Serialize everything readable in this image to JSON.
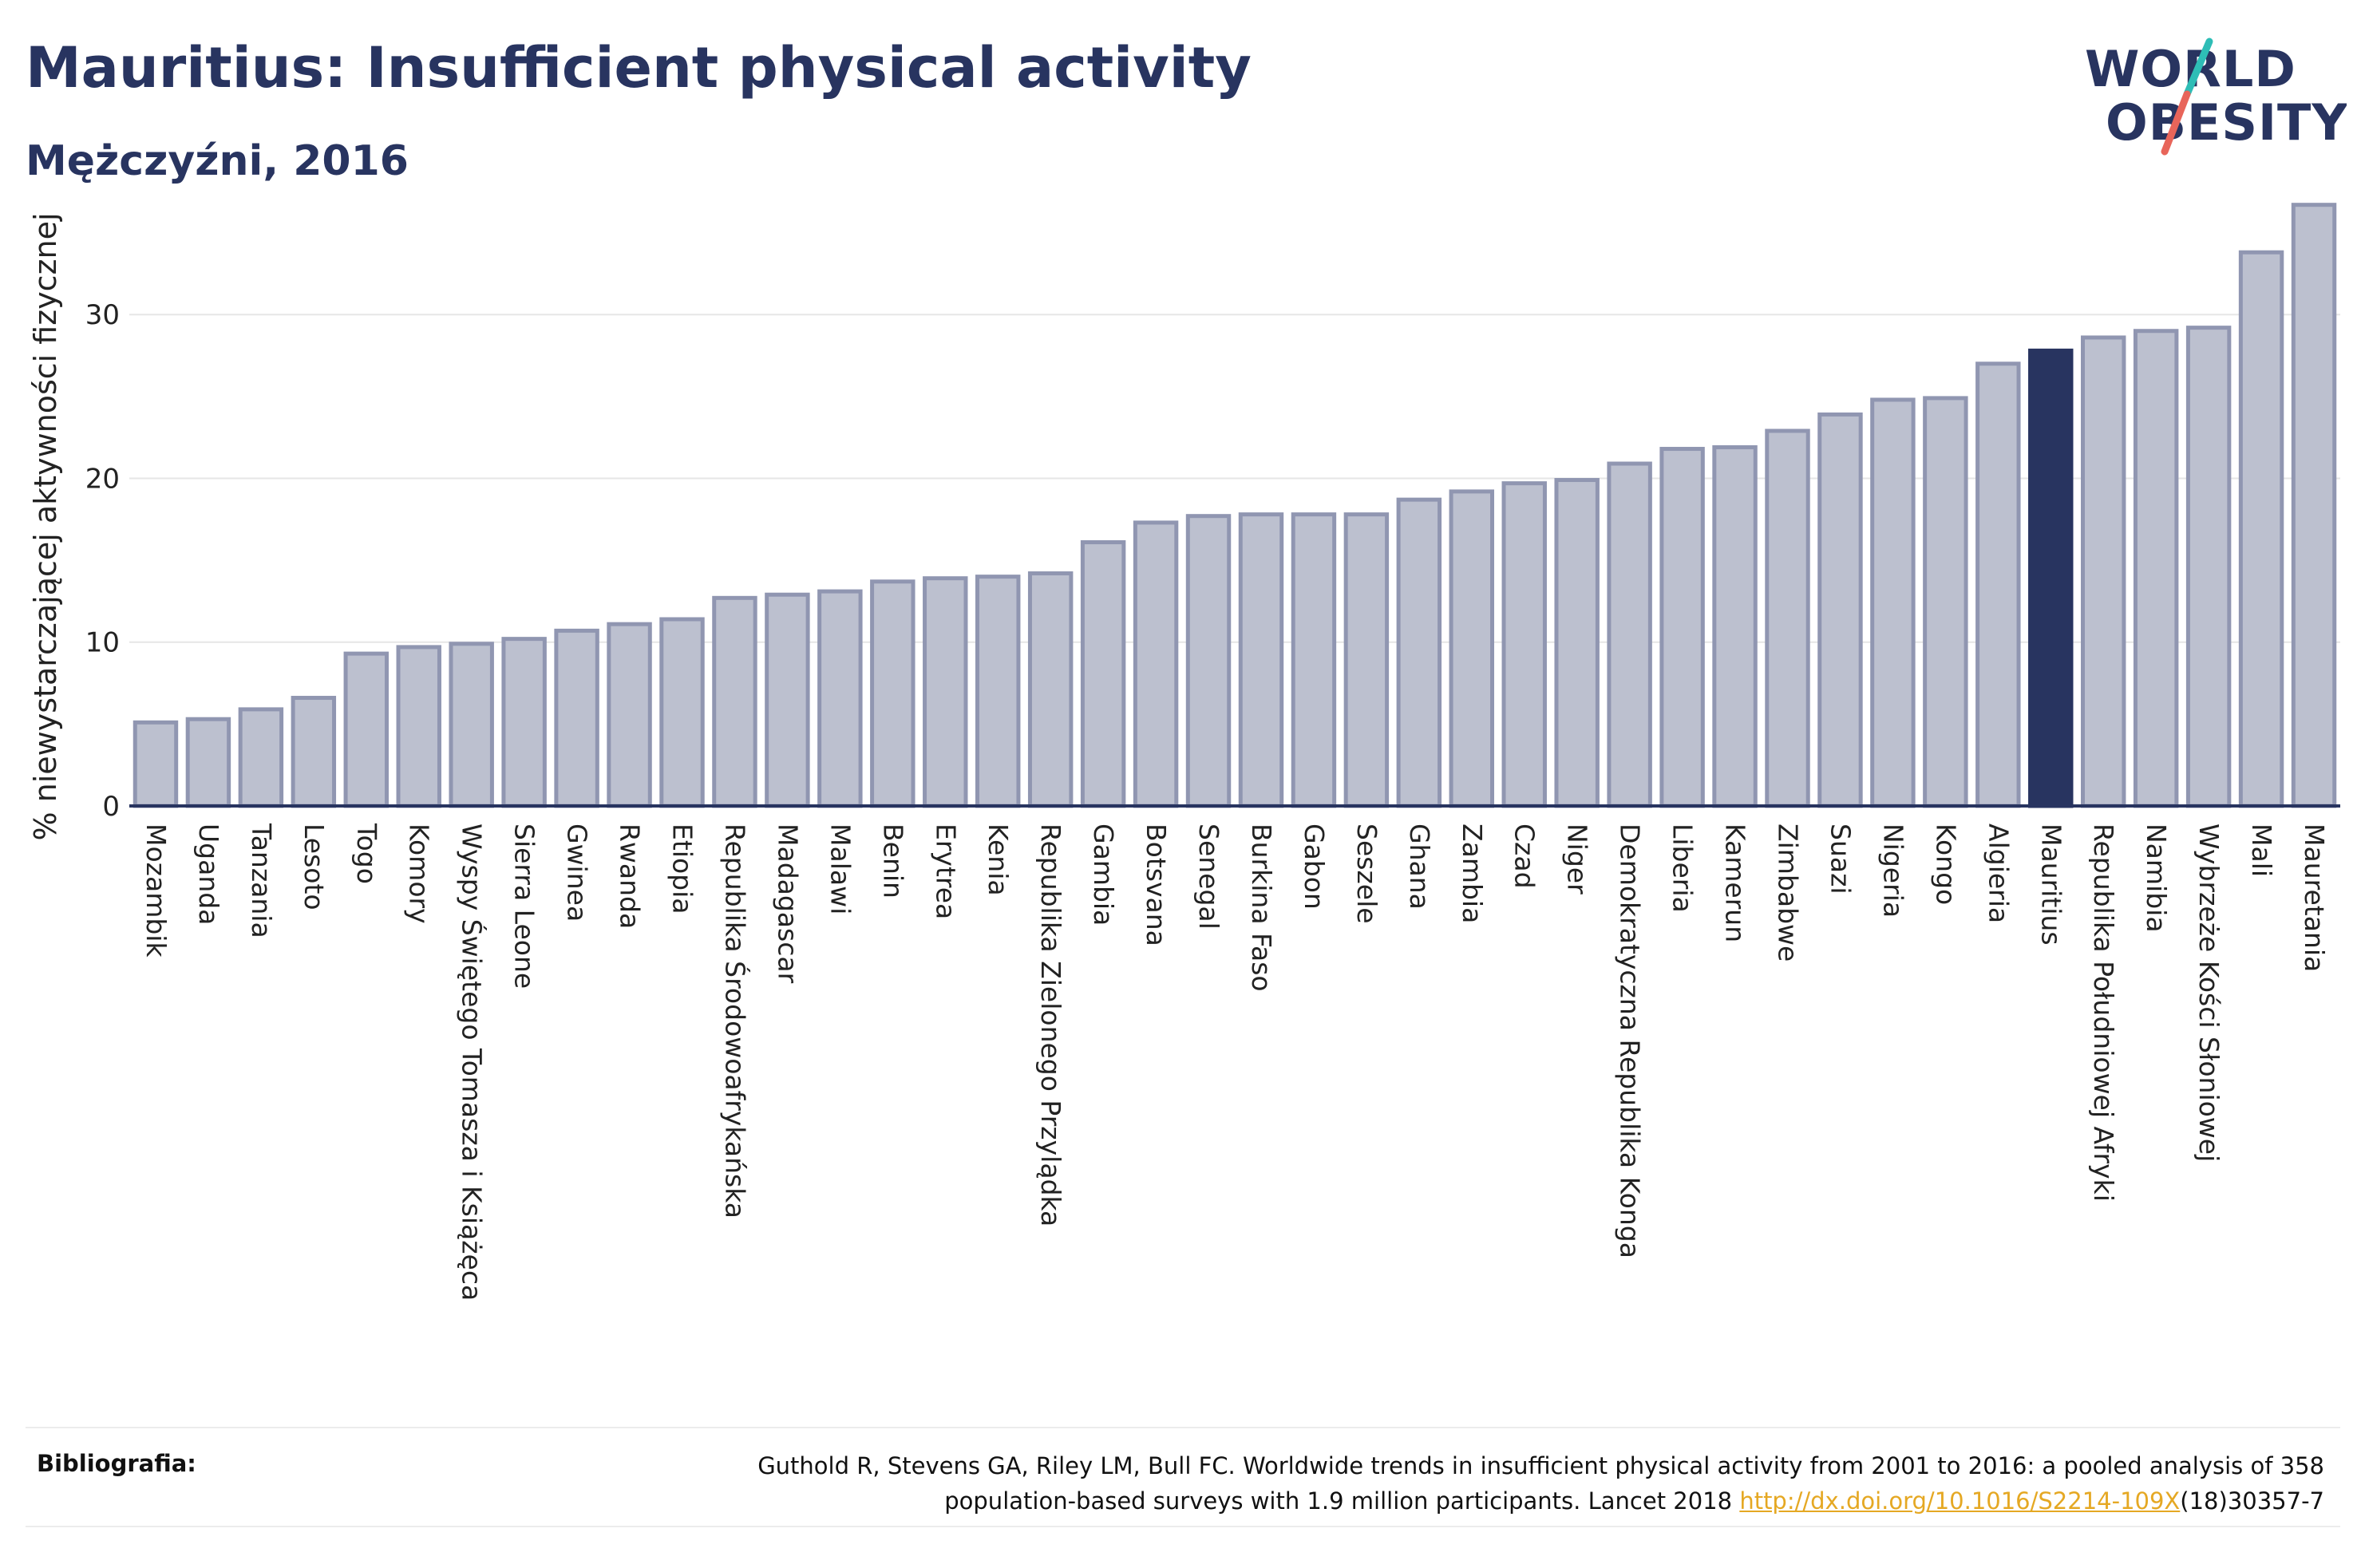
{
  "header": {
    "title": "Mauritius: Insufficient physical activity",
    "subtitle": "Mężczyźni, 2016"
  },
  "logo": {
    "line1": "WORLD",
    "line2": "OBESITY",
    "colors": {
      "text": "#283460",
      "slash_teal": "#2ebdb6",
      "slash_red": "#e8655a"
    }
  },
  "chart_data": {
    "type": "bar",
    "title": "Mauritius: Insufficient physical activity",
    "subtitle": "Mężczyźni, 2016",
    "xlabel": "",
    "ylabel": "% niewystarczającej aktywności fizycznej",
    "ylim": [
      0,
      38
    ],
    "yticks": [
      0,
      10,
      20,
      30
    ],
    "grid": true,
    "highlight": "Mauritius",
    "colors": {
      "bar": "#bcc0cf",
      "bar_edge": "#9096b1",
      "highlight": "#283460"
    },
    "categories": [
      "Mozambik",
      "Uganda",
      "Tanzania",
      "Lesoto",
      "Togo",
      "Komory",
      "Wyspy Świętego Tomasza i Książęca",
      "Sierra Leone",
      "Gwinea",
      "Rwanda",
      "Etiopia",
      "Republika Środowoafrykańska",
      "Madagascar",
      "Malawi",
      "Benin",
      "Erytrea",
      "Kenia",
      "Republika Zielonego Przylądka",
      "Gambia",
      "Botsvana",
      "Senegal",
      "Burkina Faso",
      "Gabon",
      "Seszele",
      "Ghana",
      "Zambia",
      "Czad",
      "Niger",
      "Demokratyczna Republika Konga",
      "Liberia",
      "Kamerun",
      "Zimbabwe",
      "Suazi",
      "Nigeria",
      "Kongo",
      "Algieria",
      "Mauritius",
      "Republika Południowej Afryki",
      "Namibia",
      "Wybrzeże Kości Słoniowej",
      "Mali",
      "Mauretania"
    ],
    "values": [
      5.1,
      5.3,
      5.9,
      6.6,
      9.3,
      9.7,
      9.9,
      10.2,
      10.7,
      11.1,
      11.4,
      12.7,
      12.9,
      13.1,
      13.7,
      13.9,
      14.0,
      14.2,
      16.1,
      17.3,
      17.7,
      17.8,
      17.8,
      17.8,
      18.7,
      19.2,
      19.7,
      19.9,
      20.9,
      21.8,
      21.9,
      22.9,
      23.9,
      24.8,
      24.9,
      27.0,
      27.8,
      28.6,
      29.0,
      29.2,
      33.8,
      36.7
    ]
  },
  "footer": {
    "bib_label": "Bibliografia:",
    "bib_text_line1": "Guthold R, Stevens GA, Riley LM, Bull FC. Worldwide trends in insufficient physical activity from 2001 to 2016: a pooled analysis of 358",
    "bib_text_line2_pre": "population-based surveys with 1.9 million participants. Lancet 2018 ",
    "bib_link": "http://dx.doi.org/10.1016/S2214-109X",
    "bib_text_line2_post": "(18)30357-7"
  }
}
